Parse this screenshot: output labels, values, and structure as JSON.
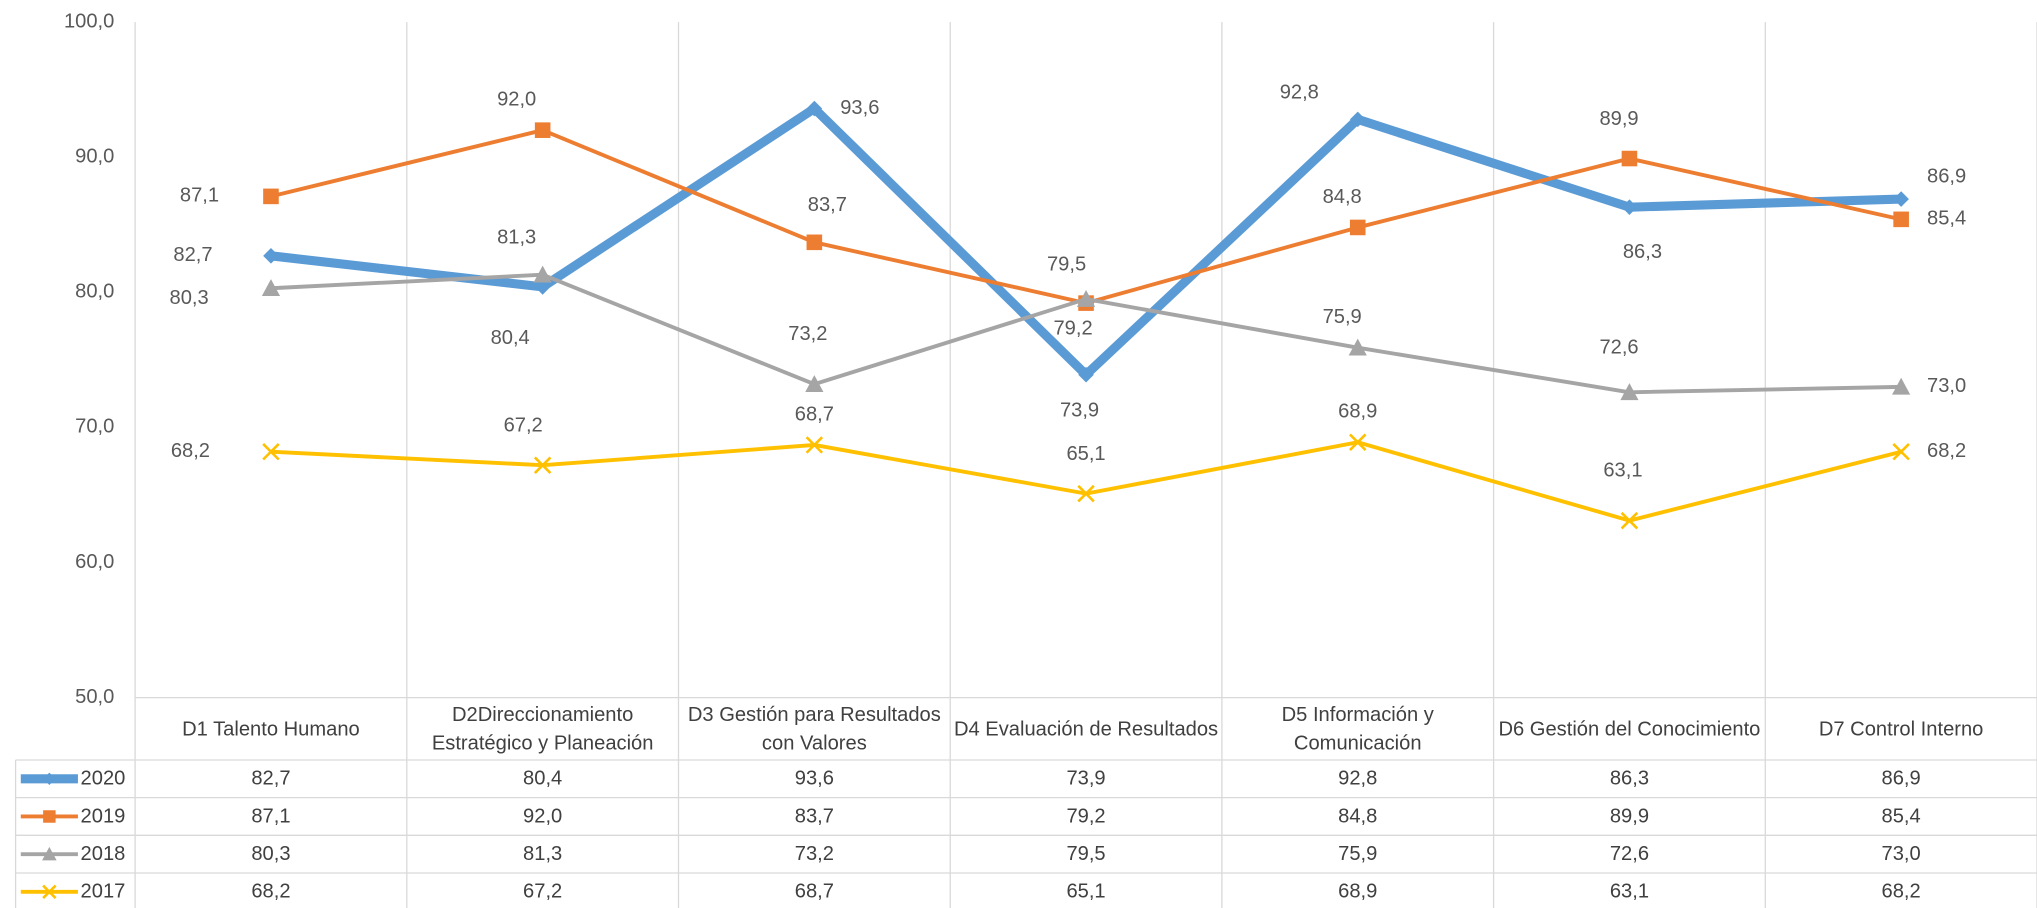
{
  "chart_data": {
    "type": "line",
    "categories": [
      "D1 Talento Humano",
      "D2Direccionamiento Estratégico y Planeación",
      "D3 Gestión para Resultados con Valores",
      "D4 Evaluación de Resultados",
      "D5 Información y Comunicación",
      "D6 Gestión del Conocimiento",
      "D7 Control Interno"
    ],
    "series": [
      {
        "name": "2020",
        "color": "#5b9bd5",
        "values": [
          82.7,
          80.4,
          93.6,
          73.9,
          92.8,
          86.3,
          86.9
        ],
        "value_labels": [
          "82,7",
          "80,4",
          "93,6",
          "73,9",
          "92,8",
          "86,3",
          "86,9"
        ]
      },
      {
        "name": "2019",
        "color": "#ed7d31",
        "values": [
          87.1,
          92.0,
          83.7,
          79.2,
          84.8,
          89.9,
          85.4
        ],
        "value_labels": [
          "87,1",
          "92,0",
          "83,7",
          "79,2",
          "84,8",
          "89,9",
          "85,4"
        ]
      },
      {
        "name": "2018",
        "color": "#a5a5a5",
        "values": [
          80.3,
          81.3,
          73.2,
          79.5,
          75.9,
          72.6,
          73.0
        ],
        "value_labels": [
          "80,3",
          "81,3",
          "73,2",
          "79,5",
          "75,9",
          "72,6",
          "73,0"
        ]
      },
      {
        "name": "2017",
        "color": "#ffc000",
        "values": [
          68.2,
          67.2,
          68.7,
          65.1,
          68.9,
          63.1,
          68.2
        ],
        "value_labels": [
          "68,2",
          "67,2",
          "68,7",
          "65,1",
          "68,9",
          "63,1",
          "68,2"
        ]
      }
    ],
    "ylim": [
      50,
      100
    ],
    "yticks": [
      {
        "value": 50,
        "label": "50,0"
      },
      {
        "value": 60,
        "label": "60,0"
      },
      {
        "value": 70,
        "label": "70,0"
      },
      {
        "value": 80,
        "label": "80,0"
      },
      {
        "value": 90,
        "label": "90,0"
      },
      {
        "value": 100,
        "label": "100,0"
      }
    ],
    "grid": "vertical",
    "data_table": true
  }
}
